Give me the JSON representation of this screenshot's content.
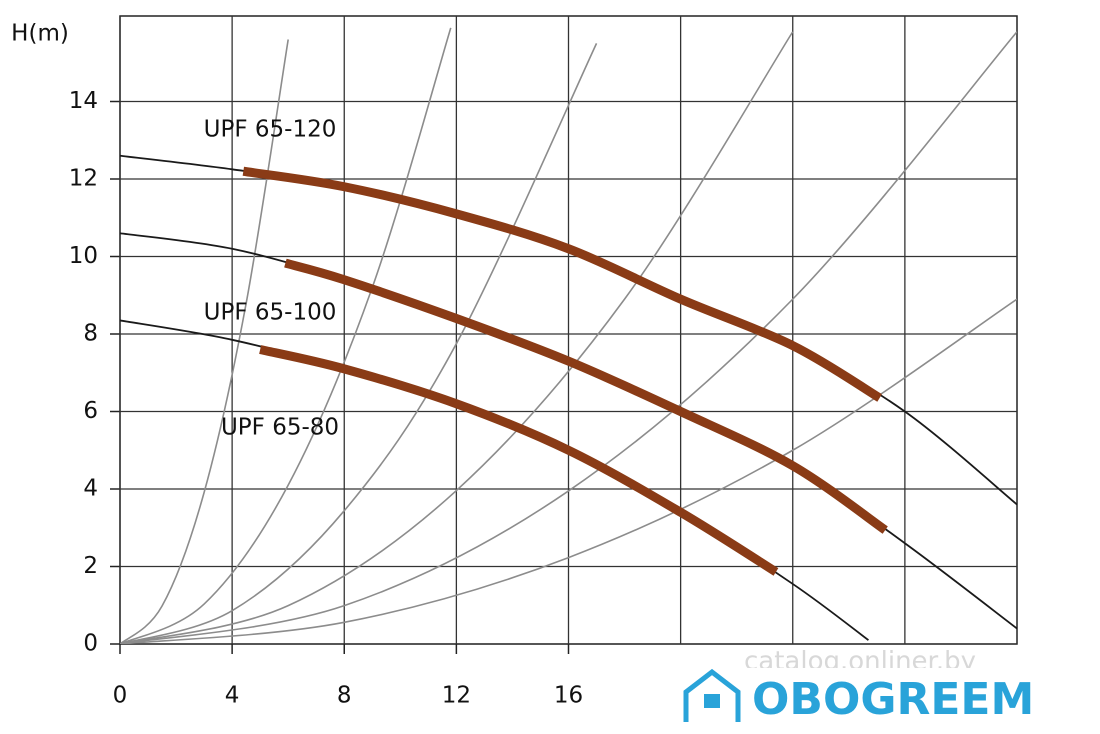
{
  "chart_data": {
    "type": "line",
    "ylabel": "H(m)",
    "xlim": [
      0,
      32
    ],
    "ylim": [
      0,
      16
    ],
    "xticks": [
      0,
      4,
      8,
      12,
      16
    ],
    "xgrid": [
      20,
      24,
      28
    ],
    "yticks": [
      0,
      2,
      4,
      6,
      8,
      10,
      12,
      14
    ],
    "grid": true,
    "series": [
      {
        "name": "UPF 65-120",
        "color": "#1a1a1a",
        "operating_color": "#8a3b16",
        "x": [
          0,
          4,
          8,
          12,
          16,
          20,
          24,
          28,
          32
        ],
        "values": [
          12.6,
          12.25,
          11.8,
          11.1,
          10.2,
          8.9,
          7.7,
          6.0,
          3.6
        ],
        "operating_x": [
          4.4,
          8,
          12,
          16,
          20,
          24,
          27.1
        ],
        "operating_values": [
          12.2,
          11.8,
          11.1,
          10.2,
          8.9,
          7.7,
          6.35
        ]
      },
      {
        "name": "UPF 65-100",
        "color": "#1a1a1a",
        "operating_color": "#8a3b16",
        "x": [
          0,
          4,
          8,
          12,
          16,
          20,
          24,
          28,
          32
        ],
        "values": [
          10.6,
          10.2,
          9.4,
          8.4,
          7.3,
          6.0,
          4.6,
          2.6,
          0.4
        ],
        "operating_x": [
          5.9,
          8,
          12,
          16,
          20,
          24,
          27.3
        ],
        "operating_values": [
          9.83,
          9.4,
          8.4,
          7.3,
          6.0,
          4.6,
          2.94
        ]
      },
      {
        "name": "UPF 65-80",
        "color": "#1a1a1a",
        "operating_color": "#8a3b16",
        "x": [
          0,
          4,
          8,
          12,
          16,
          20,
          24,
          26.7
        ],
        "values": [
          8.35,
          7.85,
          7.1,
          6.2,
          5.0,
          3.4,
          1.55,
          0.1
        ],
        "operating_x": [
          5.0,
          8,
          12,
          16,
          20,
          23.4
        ],
        "operating_values": [
          7.6,
          7.1,
          6.2,
          5.0,
          3.4,
          1.86
        ]
      }
    ],
    "system_curves_color": "#8c8c8c",
    "system_curves": [
      {
        "x": [
          0,
          1.5,
          3,
          4.5,
          6
        ],
        "values": [
          0,
          0.98,
          3.91,
          8.79,
          15.6
        ]
      },
      {
        "x": [
          0,
          3,
          6,
          9,
          11.8
        ],
        "values": [
          0,
          1.03,
          4.1,
          9.2,
          15.9
        ]
      },
      {
        "x": [
          0,
          4,
          8,
          12,
          17
        ],
        "values": [
          0,
          0.86,
          3.44,
          7.75,
          15.5
        ]
      },
      {
        "x": [
          0,
          6,
          12,
          18,
          24
        ],
        "values": [
          0,
          0.99,
          3.96,
          8.9,
          15.8
        ]
      },
      {
        "x": [
          0,
          8,
          16,
          24,
          32
        ],
        "values": [
          0,
          0.99,
          3.95,
          8.9,
          15.8
        ]
      },
      {
        "x": [
          0,
          8,
          16,
          24,
          32
        ],
        "values": [
          0,
          0.56,
          2.23,
          5.0,
          8.9
        ]
      }
    ],
    "watermark": "catalog.onliner.by",
    "logo": "OBOGREEM"
  }
}
